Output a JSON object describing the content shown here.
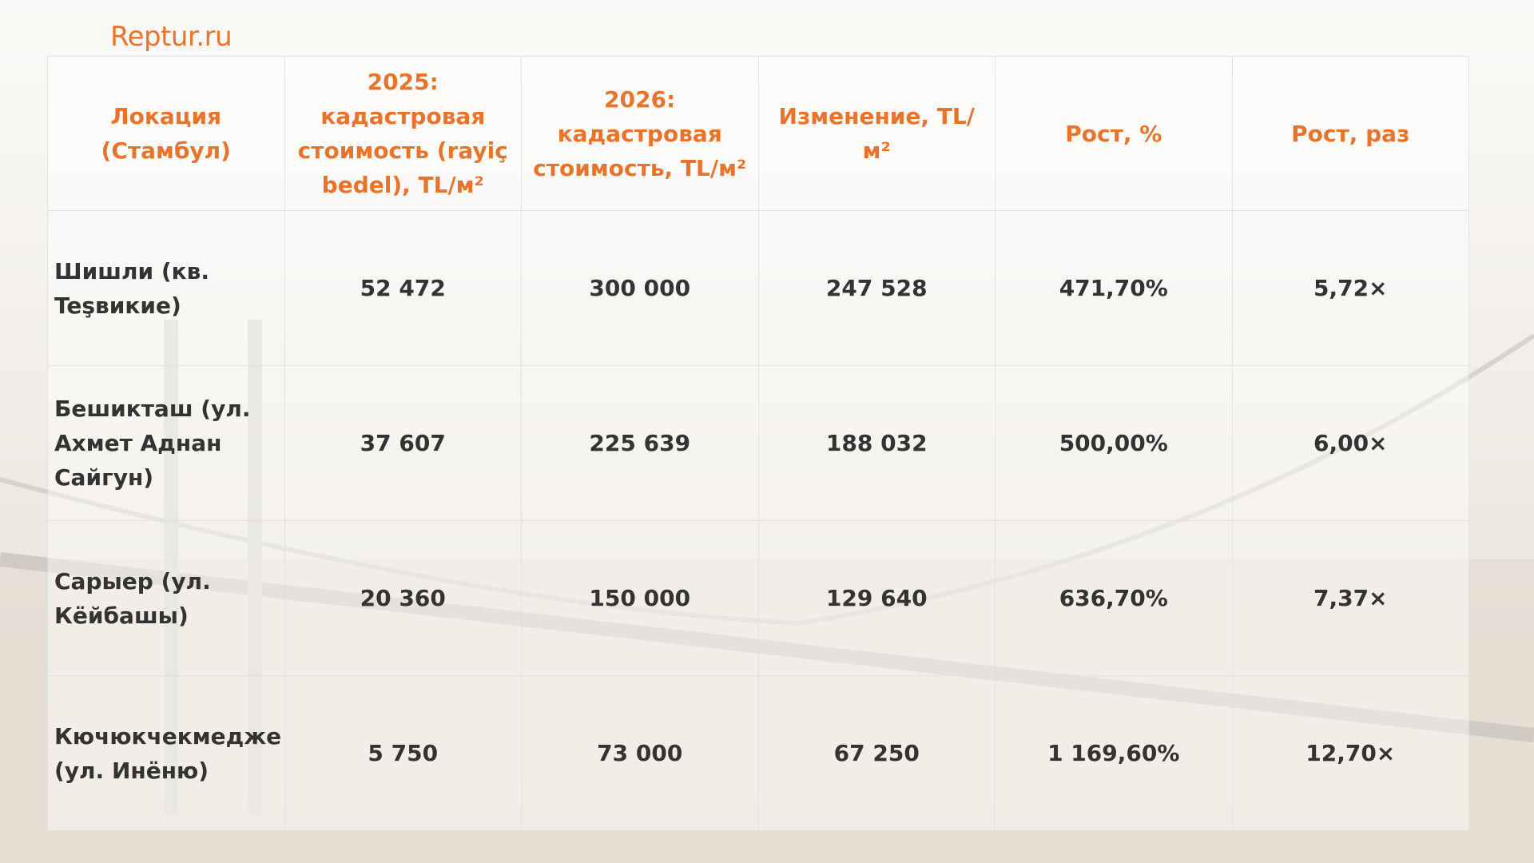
{
  "brand": "Reptur.ru",
  "table": {
    "header": [
      "Локация (Стамбул)",
      "2025: кадастровая стоимость (rayiç bedel), TL/м²",
      "2026: кадастровая стоимость, TL/м²",
      "Изменение, TL/м²",
      "Рост, %",
      "Рост, раз"
    ],
    "rows": [
      [
        "Шишли (кв. Teşвикие)",
        "52 472",
        "300 000",
        "247 528",
        "471,70%",
        "5,72×"
      ],
      [
        "Бешикташ (ул. Ахмет Аднан Сайгун)",
        "37 607",
        "225 639",
        "188 032",
        "500,00%",
        "6,00×"
      ],
      [
        "Сарыер (ул. Кёйбашы)",
        "20 360",
        "150 000",
        "129 640",
        "636,70%",
        "7,37×"
      ],
      [
        "Кючюкчекмедже (ул. Инёню)",
        "5 750",
        "73 000",
        "67 250",
        "1 169,60%",
        "12,70×"
      ]
    ]
  }
}
